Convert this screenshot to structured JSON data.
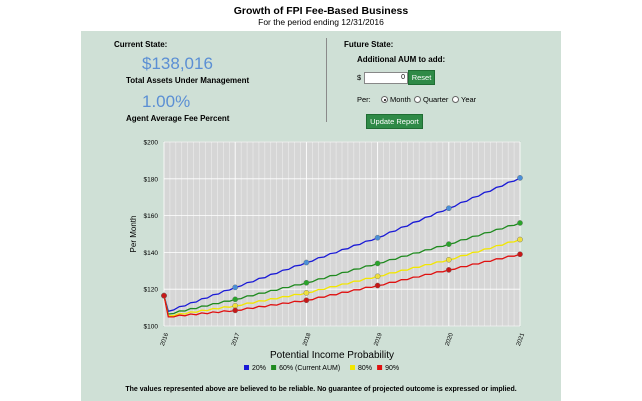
{
  "header": {
    "title": "Growth of FPI Fee-Based Business",
    "subtitle": "For the period ending 12/31/2016"
  },
  "current_state": {
    "heading": "Current State:",
    "aum_value": "$138,016",
    "aum_label": "Total Assets Under Management",
    "fee_value": "1.00%",
    "fee_label": "Agent Average Fee Percent"
  },
  "future_state": {
    "heading": "Future State:",
    "add_label": "Additional AUM to add:",
    "currency_symbol": "$",
    "aum_input_value": "0",
    "reset_label": "Reset",
    "per_label": "Per:",
    "period_options": [
      {
        "label": "Month",
        "selected": true
      },
      {
        "label": "Quarter",
        "selected": false
      },
      {
        "label": "Year",
        "selected": false
      }
    ],
    "update_label": "Update Report"
  },
  "chart_data": {
    "type": "line",
    "title": "Potential Income Probability",
    "ylabel": "Per Month",
    "xlabel": "",
    "ylim": [
      100,
      200
    ],
    "yticks": [
      "$100",
      "$120",
      "$140",
      "$160",
      "$180",
      "$200"
    ],
    "xticks": [
      "2016",
      "2017",
      "2018",
      "2019",
      "2020",
      "2021"
    ],
    "grid": true,
    "legend_position": "bottom",
    "x": [
      2016,
      2017,
      2018,
      2019,
      2020,
      2021
    ],
    "series": [
      {
        "name": "20%",
        "color": "#1a1ad6",
        "marker": "#4a90d9",
        "start": 108,
        "values": [
          116.5,
          121,
          134.5,
          148,
          164,
          180.5
        ]
      },
      {
        "name": "60% (Current AUM)",
        "color": "#1f8a1f",
        "marker": "#2aa52a",
        "start": 106.5,
        "values": [
          116.5,
          114.5,
          123.5,
          134,
          144.5,
          156
        ]
      },
      {
        "name": "80%",
        "color": "#f2e600",
        "marker": "#f0e040",
        "start": 105.5,
        "values": [
          116.5,
          111,
          118,
          127,
          136,
          147
        ]
      },
      {
        "name": "90%",
        "color": "#e01010",
        "marker": "#c81818",
        "start": 105,
        "values": [
          116.5,
          108.5,
          114,
          122,
          130.5,
          139
        ]
      }
    ]
  },
  "footer": {
    "disclaimer": "The values represented above are believed to be reliable. No guarantee of projected outcome is expressed or implied."
  }
}
